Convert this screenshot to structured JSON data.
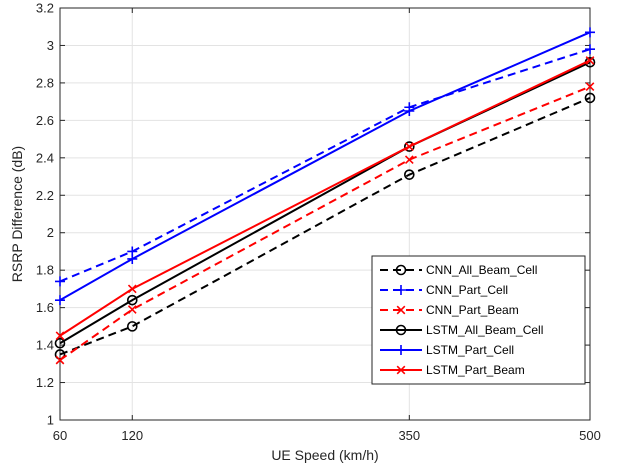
{
  "chart_data": {
    "type": "line",
    "xlabel": "UE Speed (km/h)",
    "ylabel": "RSRP Difference (dB)",
    "x": [
      60,
      120,
      350,
      500
    ],
    "xlim": [
      60,
      500
    ],
    "ylim": [
      1,
      3.2
    ],
    "xticks": [
      "60",
      "120",
      "350",
      "500"
    ],
    "yticks": [
      "1",
      "1.2",
      "1.4",
      "1.6",
      "1.8",
      "2",
      "2.2",
      "2.4",
      "2.6",
      "2.8",
      "3",
      "3.2"
    ],
    "grid": true,
    "legend_position": "lower-right",
    "series": [
      {
        "name": "CNN_All_Beam_Cell",
        "values": [
          1.35,
          1.5,
          2.31,
          2.72
        ],
        "color": "#000000",
        "dash": "dashed",
        "marker": "circle"
      },
      {
        "name": "CNN_Part_Cell",
        "values": [
          1.74,
          1.9,
          2.67,
          2.98
        ],
        "color": "#0000ff",
        "dash": "dashed",
        "marker": "plus"
      },
      {
        "name": "CNN_Part_Beam",
        "values": [
          1.32,
          1.59,
          2.39,
          2.78
        ],
        "color": "#ff0000",
        "dash": "dashed",
        "marker": "x"
      },
      {
        "name": "LSTM_All_Beam_Cell",
        "values": [
          1.41,
          1.64,
          2.46,
          2.91
        ],
        "color": "#000000",
        "dash": "solid",
        "marker": "circle"
      },
      {
        "name": "LSTM_Part_Cell",
        "values": [
          1.64,
          1.86,
          2.65,
          3.07
        ],
        "color": "#0000ff",
        "dash": "solid",
        "marker": "plus"
      },
      {
        "name": "LSTM_Part_Beam",
        "values": [
          1.45,
          1.7,
          2.46,
          2.92
        ],
        "color": "#ff0000",
        "dash": "solid",
        "marker": "x"
      }
    ]
  }
}
